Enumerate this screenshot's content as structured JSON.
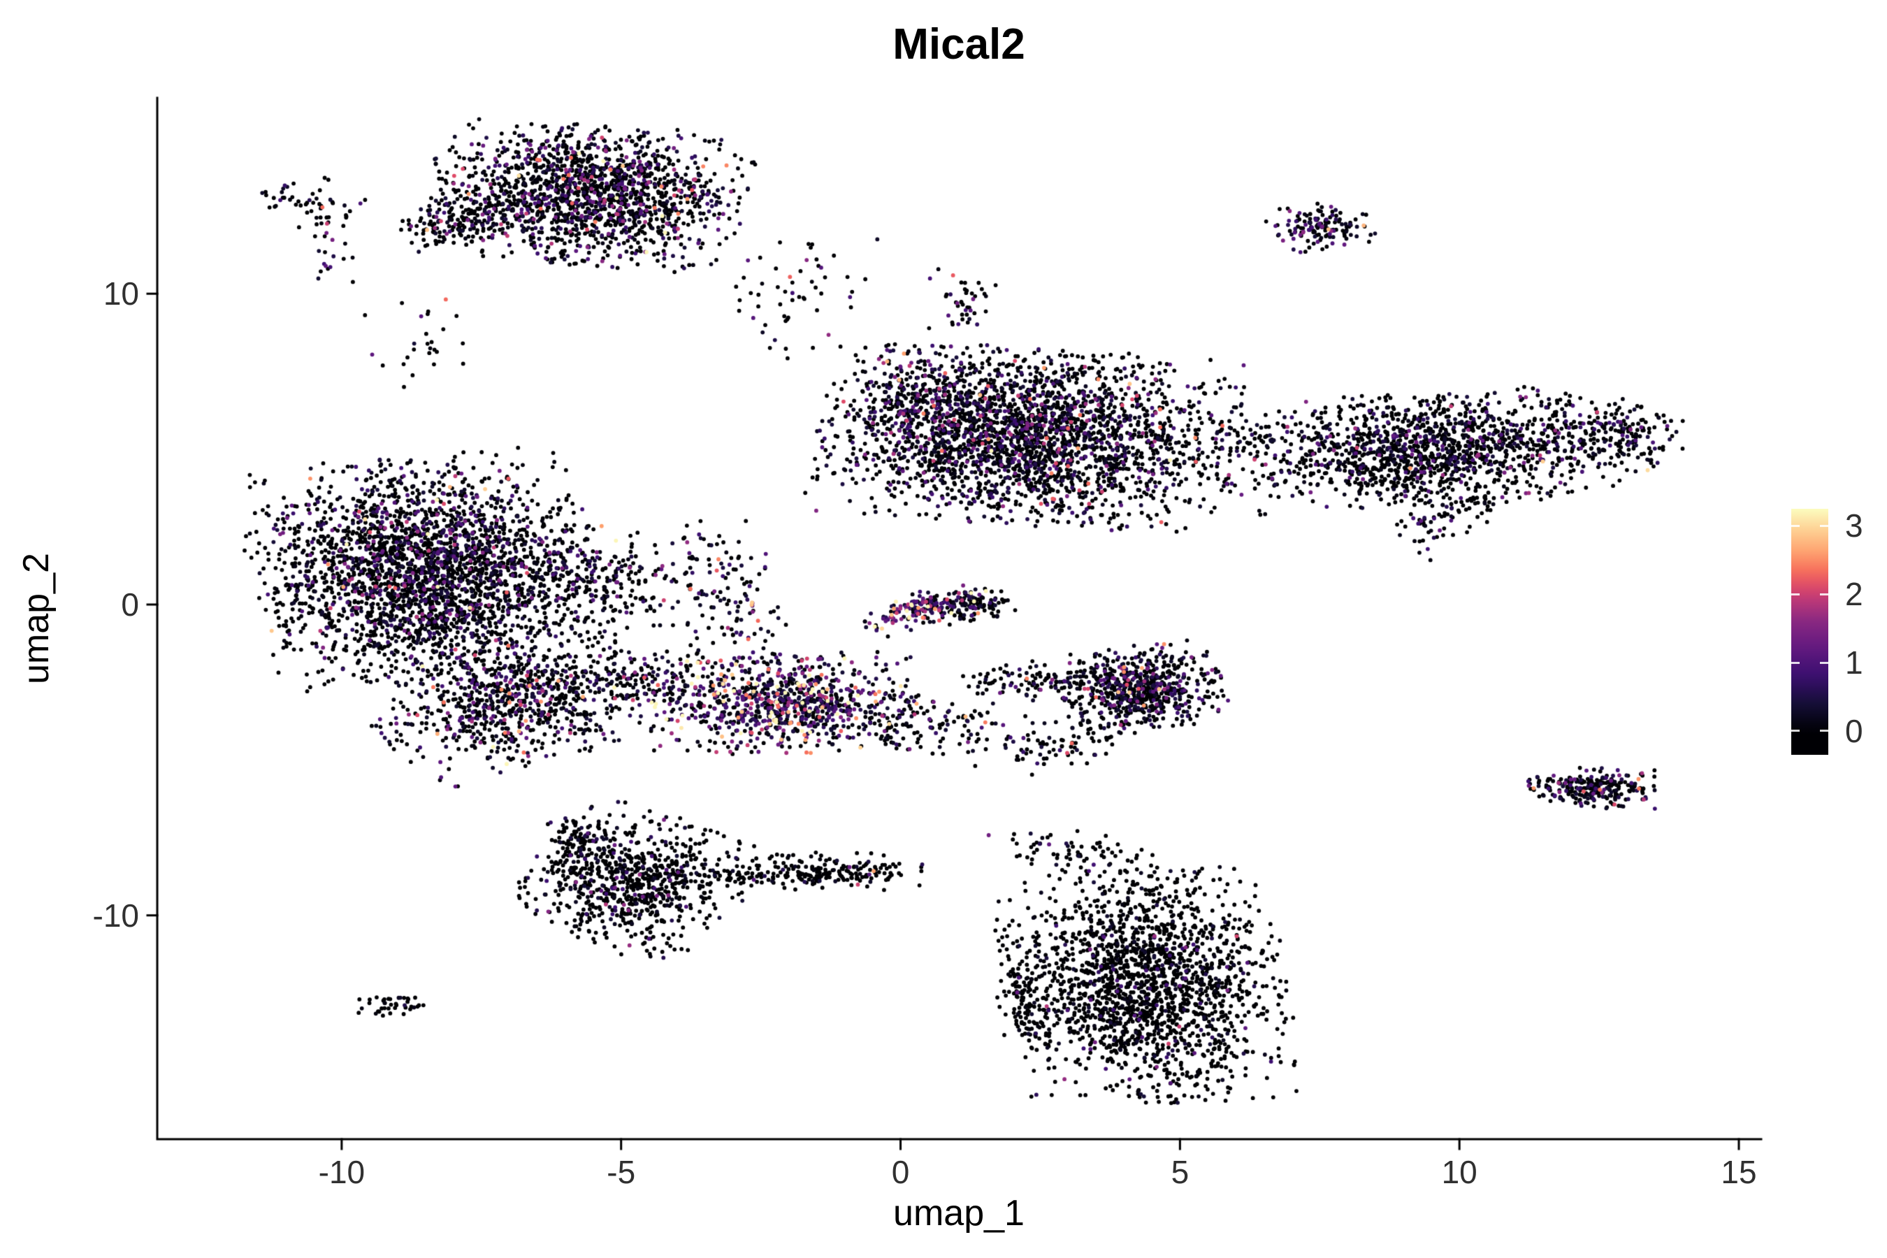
{
  "figure": {
    "background": "#ffffff",
    "axis_color": "#000000",
    "tick_text_color": "#303030"
  },
  "chart_data": {
    "type": "scatter",
    "title": "Mical2",
    "xlabel": "umap_1",
    "ylabel": "umap_2",
    "xlim": [
      -13.3,
      15.4
    ],
    "ylim": [
      -17.2,
      16.3
    ],
    "x_ticks": [
      -10,
      -5,
      0,
      5,
      10,
      15
    ],
    "y_ticks": [
      -10,
      0,
      10
    ],
    "grid": false,
    "point_count_approx": 15800,
    "legend": {
      "position": "right",
      "tick_labels": [
        "0",
        "1",
        "2",
        "3"
      ],
      "tick_values": [
        0,
        1,
        2,
        3
      ],
      "value_max": 3.25,
      "bar_value_min": -0.35,
      "colormap": "magma",
      "colormap_stops": [
        [
          0.0,
          "#000004"
        ],
        [
          0.12,
          "#140e36"
        ],
        [
          0.25,
          "#3b0f70"
        ],
        [
          0.38,
          "#641a80"
        ],
        [
          0.5,
          "#8c2981"
        ],
        [
          0.58,
          "#b73779"
        ],
        [
          0.65,
          "#de4968"
        ],
        [
          0.72,
          "#f66e5c"
        ],
        [
          0.8,
          "#fe9f6d"
        ],
        [
          0.9,
          "#fece91"
        ],
        [
          1.0,
          "#fcfdbf"
        ]
      ]
    },
    "clusters": [
      {
        "name": "top-main",
        "cx": -5.6,
        "cy": 13.2,
        "sx": 1.25,
        "sy": 1.0,
        "rot": -0.15,
        "n": 1600,
        "p0": 0.6,
        "es": 0.7
      },
      {
        "name": "top-main-hook",
        "cx": -7.9,
        "cy": 12.3,
        "sx": 0.5,
        "sy": 0.35,
        "rot": 0.4,
        "n": 130,
        "p0": 0.7,
        "es": 0.6
      },
      {
        "name": "top-left-specks-a",
        "cx": -10.9,
        "cy": 13.1,
        "sx": 0.35,
        "sy": 0.25,
        "rot": -0.3,
        "n": 28,
        "p0": 0.75,
        "es": 0.6
      },
      {
        "name": "top-left-specks-b",
        "cx": -10.2,
        "cy": 12.7,
        "sx": 0.3,
        "sy": 0.45,
        "rot": 0,
        "n": 30,
        "p0": 0.7,
        "es": 0.7
      },
      {
        "name": "top-left-specks-c",
        "cx": -10.1,
        "cy": 11.2,
        "sx": 0.25,
        "sy": 0.5,
        "rot": 0,
        "n": 14,
        "p0": 0.6,
        "es": 0.8
      },
      {
        "name": "above-center-small",
        "cx": 1.1,
        "cy": 9.7,
        "sx": 0.35,
        "sy": 0.5,
        "rot": 0,
        "n": 42,
        "p0": 0.65,
        "es": 0.8
      },
      {
        "name": "top-right-small",
        "cx": 7.5,
        "cy": 12.1,
        "sx": 0.42,
        "sy": 0.35,
        "rot": 0.2,
        "n": 140,
        "p0": 0.55,
        "es": 0.6
      },
      {
        "name": "top-center-connector",
        "cx": -1.9,
        "cy": 9.8,
        "sx": 0.7,
        "sy": 0.9,
        "rot": 0,
        "n": 55,
        "p0": 0.68,
        "es": 0.6
      },
      {
        "name": "left-upper-specks",
        "cx": -8.6,
        "cy": 8.5,
        "sx": 0.45,
        "sy": 0.75,
        "rot": 0,
        "n": 26,
        "p0": 0.7,
        "es": 0.6
      },
      {
        "name": "center-main",
        "cx": 2.3,
        "cy": 5.4,
        "sx": 1.65,
        "sy": 1.25,
        "rot": -0.12,
        "n": 2600,
        "p0": 0.64,
        "es": 0.6
      },
      {
        "name": "center-left-edge",
        "cx": 0.4,
        "cy": 6.6,
        "sx": 0.55,
        "sy": 0.7,
        "rot": 0,
        "n": 200,
        "p0": 0.5,
        "es": 0.7
      },
      {
        "name": "right-band",
        "cx": 9.5,
        "cy": 5.0,
        "sx": 1.7,
        "sy": 0.8,
        "rot": 0.1,
        "n": 1500,
        "p0": 0.7,
        "es": 0.55
      },
      {
        "name": "right-band-tip",
        "cx": 13.0,
        "cy": 5.5,
        "sx": 0.5,
        "sy": 0.45,
        "rot": -0.4,
        "n": 120,
        "p0": 0.72,
        "es": 0.5
      },
      {
        "name": "right-band-tail",
        "cx": 9.9,
        "cy": 2.9,
        "sx": 0.7,
        "sy": 0.35,
        "rot": 0.9,
        "n": 80,
        "p0": 0.7,
        "es": 0.5
      },
      {
        "name": "left-main",
        "cx": -8.5,
        "cy": 1.1,
        "sx": 1.35,
        "sy": 1.6,
        "rot": 0.15,
        "n": 2700,
        "p0": 0.66,
        "es": 0.6
      },
      {
        "name": "left-main-east",
        "cx": -5.3,
        "cy": 0.8,
        "sx": 0.7,
        "sy": 0.8,
        "rot": 0,
        "n": 220,
        "p0": 0.6,
        "es": 0.7
      },
      {
        "name": "left-lower-arm",
        "cx": -6.9,
        "cy": -3.1,
        "sx": 1.15,
        "sy": 0.9,
        "rot": 0.5,
        "n": 800,
        "p0": 0.58,
        "es": 0.7
      },
      {
        "name": "left-right-chain",
        "cx": -3.1,
        "cy": 0.4,
        "sx": 0.4,
        "sy": 1.2,
        "rot": 0.15,
        "n": 130,
        "p0": 0.55,
        "es": 0.7
      },
      {
        "name": "left-mid-connector",
        "cx": -4.4,
        "cy": -2.4,
        "sx": 0.75,
        "sy": 0.5,
        "rot": 0.2,
        "n": 130,
        "p0": 0.55,
        "es": 0.75
      },
      {
        "name": "mid-strip-high",
        "cx": -2.1,
        "cy": -3.2,
        "sx": 1.05,
        "sy": 0.7,
        "rot": 0.05,
        "n": 850,
        "p0": 0.34,
        "es": 1.05
      },
      {
        "name": "streak-high",
        "cx": 0.45,
        "cy": -0.1,
        "sx": 0.55,
        "sy": 0.22,
        "rot": 0.5,
        "n": 170,
        "p0": 0.22,
        "es": 1.25
      },
      {
        "name": "right-of-streak",
        "cx": 1.35,
        "cy": -0.1,
        "sx": 0.35,
        "sy": 0.2,
        "rot": 0.2,
        "n": 90,
        "p0": 0.68,
        "es": 0.5
      },
      {
        "name": "below-streak-chain",
        "cx": 0.4,
        "cy": -3.9,
        "sx": 1.0,
        "sy": 0.45,
        "rot": -0.25,
        "n": 150,
        "p0": 0.72,
        "es": 0.55
      },
      {
        "name": "midright-cluster",
        "cx": 4.3,
        "cy": -2.7,
        "sx": 0.65,
        "sy": 0.6,
        "rot": 0.25,
        "n": 650,
        "p0": 0.58,
        "es": 0.6
      },
      {
        "name": "midright-left-arm",
        "cx": 2.6,
        "cy": -2.5,
        "sx": 0.75,
        "sy": 0.3,
        "rot": -0.1,
        "n": 110,
        "p0": 0.7,
        "es": 0.5
      },
      {
        "name": "midright-tail",
        "cx": 3.0,
        "cy": -4.4,
        "sx": 0.5,
        "sy": 0.35,
        "rot": 0.4,
        "n": 70,
        "p0": 0.75,
        "es": 0.5
      },
      {
        "name": "bottom-left-c",
        "cx": -4.7,
        "cy": -8.9,
        "sx": 0.85,
        "sy": 0.95,
        "rot": -0.55,
        "n": 760,
        "p0": 0.8,
        "es": 0.45
      },
      {
        "name": "bottom-left-c-top",
        "cx": -5.7,
        "cy": -7.7,
        "sx": 0.3,
        "sy": 0.5,
        "rot": 0.2,
        "n": 90,
        "p0": 0.72,
        "es": 0.5
      },
      {
        "name": "bottom-mid-strip",
        "cx": -1.2,
        "cy": -8.6,
        "sx": 0.8,
        "sy": 0.28,
        "rot": -0.05,
        "n": 190,
        "p0": 0.85,
        "es": 0.4
      },
      {
        "name": "bottom-mid-strip-left",
        "cx": -2.7,
        "cy": -8.8,
        "sx": 0.35,
        "sy": 0.12,
        "rot": 0,
        "n": 30,
        "p0": 0.85,
        "es": 0.4
      },
      {
        "name": "bottom-right-main",
        "cx": 4.4,
        "cy": -12.3,
        "sx": 1.1,
        "sy": 1.65,
        "rot": 0.1,
        "n": 1900,
        "p0": 0.86,
        "es": 0.4
      },
      {
        "name": "bottom-right-top-chain",
        "cx": 3.2,
        "cy": -8.0,
        "sx": 0.8,
        "sy": 0.3,
        "rot": -0.35,
        "n": 80,
        "p0": 0.85,
        "es": 0.4
      },
      {
        "name": "bottom-right-left-chain",
        "cx": 2.2,
        "cy": -12.8,
        "sx": 0.22,
        "sy": 0.85,
        "rot": 0.1,
        "n": 90,
        "p0": 0.86,
        "es": 0.4
      },
      {
        "name": "tiny-bottom-left",
        "cx": -9.1,
        "cy": -12.9,
        "sx": 0.3,
        "sy": 0.15,
        "rot": 0.15,
        "n": 40,
        "p0": 0.85,
        "es": 0.4
      },
      {
        "name": "right-small-low",
        "cx": 12.4,
        "cy": -5.9,
        "sx": 0.5,
        "sy": 0.28,
        "rot": -0.05,
        "n": 230,
        "p0": 0.55,
        "es": 0.55
      },
      {
        "name": "right-small-low-specks",
        "cx": 11.5,
        "cy": -5.7,
        "sx": 0.3,
        "sy": 0.1,
        "rot": 0,
        "n": 16,
        "p0": 0.5,
        "es": 0.8
      }
    ]
  }
}
